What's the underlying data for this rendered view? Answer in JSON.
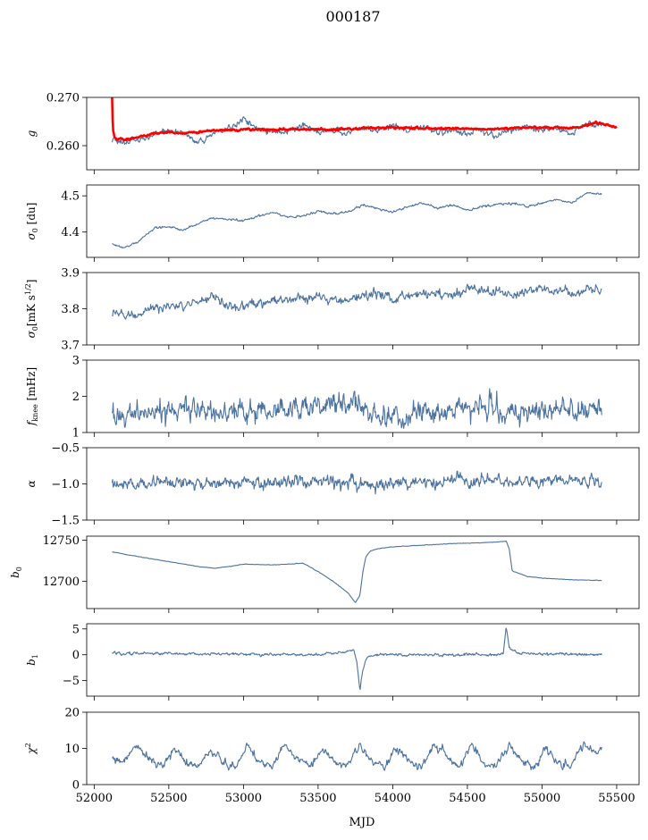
{
  "figure": {
    "title": "000187",
    "xlabel": "MJD",
    "xlim": [
      51950,
      55650
    ],
    "xticks": [
      52000,
      52500,
      53000,
      53500,
      54000,
      54500,
      55000,
      55500
    ],
    "xtick_labels": [
      "52000",
      "52500",
      "53000",
      "53500",
      "54000",
      "54500",
      "55000",
      "55500"
    ]
  },
  "chart_data": [
    {
      "type": "line",
      "ylabel": "g",
      "ylim": [
        0.255,
        0.27
      ],
      "yticks": [
        0.26,
        0.27
      ],
      "ytick_labels": [
        "0.260",
        "0.270"
      ],
      "series": [
        {
          "color": "#4c72a0",
          "x_range": [
            52120,
            55400
          ],
          "x": [
            52120,
            52200,
            52300,
            52400,
            52500,
            52600,
            52700,
            52800,
            52900,
            53000,
            53100,
            53200,
            53300,
            53400,
            53500,
            53600,
            53700,
            53800,
            53900,
            54000,
            54100,
            54200,
            54300,
            54400,
            54500,
            54600,
            54700,
            54800,
            54900,
            55000,
            55100,
            55200,
            55300,
            55400
          ],
          "y": [
            0.2615,
            0.2608,
            0.2612,
            0.2625,
            0.2632,
            0.2626,
            0.2605,
            0.2625,
            0.2635,
            0.2655,
            0.2632,
            0.2628,
            0.263,
            0.2645,
            0.2625,
            0.2632,
            0.2628,
            0.2638,
            0.2635,
            0.2642,
            0.2632,
            0.2638,
            0.2628,
            0.2632,
            0.2625,
            0.2632,
            0.2618,
            0.2635,
            0.264,
            0.2632,
            0.2638,
            0.2622,
            0.2648,
            0.2638
          ],
          "noise": 0.0006
        },
        {
          "color": "#ff0000",
          "x_range": [
            52120,
            55500
          ],
          "x": [
            52120,
            52125,
            52135,
            52150,
            52200,
            52300,
            52400,
            52500,
            52600,
            52700,
            52800,
            52900,
            53000,
            53200,
            53400,
            53600,
            53800,
            54000,
            54200,
            54400,
            54600,
            54800,
            55000,
            55200,
            55300,
            55350,
            55400,
            55450,
            55500
          ],
          "y": [
            0.27,
            0.2635,
            0.262,
            0.2613,
            0.2612,
            0.2618,
            0.2625,
            0.2628,
            0.2626,
            0.2628,
            0.2632,
            0.2632,
            0.2634,
            0.2633,
            0.2635,
            0.2633,
            0.2636,
            0.2638,
            0.2635,
            0.2636,
            0.2634,
            0.2636,
            0.2638,
            0.2636,
            0.2642,
            0.2648,
            0.2645,
            0.2642,
            0.2638
          ],
          "noise": 0.0002,
          "linewidth": 2.6
        }
      ]
    },
    {
      "type": "line",
      "ylabel": "σ0 [du]",
      "ylim": [
        4.33,
        4.53
      ],
      "yticks": [
        4.4,
        4.5
      ],
      "ytick_labels": [
        "4.4",
        "4.5"
      ],
      "series": [
        {
          "color": "#4c72a0",
          "x_range": [
            52120,
            55400
          ],
          "x": [
            52120,
            52200,
            52300,
            52400,
            52500,
            52600,
            52700,
            52800,
            52900,
            53000,
            53100,
            53200,
            53300,
            53400,
            53500,
            53600,
            53700,
            53800,
            53900,
            54000,
            54100,
            54200,
            54300,
            54400,
            54500,
            54600,
            54700,
            54800,
            54900,
            55000,
            55100,
            55200,
            55300,
            55400
          ],
          "y": [
            4.365,
            4.355,
            4.375,
            4.41,
            4.415,
            4.405,
            4.425,
            4.44,
            4.435,
            4.43,
            4.445,
            4.455,
            4.44,
            4.445,
            4.46,
            4.45,
            4.455,
            4.475,
            4.465,
            4.455,
            4.47,
            4.48,
            4.465,
            4.475,
            4.46,
            4.47,
            4.475,
            4.48,
            4.47,
            4.48,
            4.49,
            4.48,
            4.51,
            4.505
          ],
          "noise": 0.003
        }
      ]
    },
    {
      "type": "line",
      "ylabel": "σ0[mK s^1/2]",
      "ylim": [
        3.7,
        3.9
      ],
      "yticks": [
        3.7,
        3.8,
        3.9
      ],
      "ytick_labels": [
        "3.7",
        "3.8",
        "3.9"
      ],
      "series": [
        {
          "color": "#4c72a0",
          "x_range": [
            52120,
            55400
          ],
          "x": [
            52120,
            52200,
            52300,
            52400,
            52500,
            52600,
            52700,
            52800,
            52900,
            53000,
            53100,
            53200,
            53300,
            53400,
            53500,
            53600,
            53700,
            53800,
            53900,
            54000,
            54100,
            54200,
            54300,
            54400,
            54500,
            54600,
            54700,
            54800,
            54900,
            55000,
            55100,
            55200,
            55300,
            55400
          ],
          "y": [
            3.78,
            3.785,
            3.78,
            3.8,
            3.81,
            3.815,
            3.82,
            3.835,
            3.81,
            3.8,
            3.815,
            3.82,
            3.825,
            3.83,
            3.835,
            3.82,
            3.825,
            3.835,
            3.845,
            3.83,
            3.835,
            3.84,
            3.845,
            3.835,
            3.85,
            3.855,
            3.845,
            3.84,
            3.85,
            3.855,
            3.85,
            3.845,
            3.855,
            3.85
          ],
          "noise": 0.012
        }
      ]
    },
    {
      "type": "line",
      "ylabel": "fknee [mHz]",
      "ylim": [
        1,
        3
      ],
      "yticks": [
        1,
        2,
        3
      ],
      "ytick_labels": [
        "1",
        "2",
        "3"
      ],
      "series": [
        {
          "color": "#4c72a0",
          "x_range": [
            52120,
            55400
          ],
          "x": [
            52120,
            52300,
            52500,
            52700,
            52900,
            53100,
            53300,
            53500,
            53700,
            53900,
            54100,
            54300,
            54500,
            54700,
            54900,
            55100,
            55300,
            55400
          ],
          "y": [
            1.6,
            1.55,
            1.65,
            1.6,
            1.55,
            1.65,
            1.6,
            1.7,
            1.8,
            1.55,
            1.45,
            1.55,
            1.6,
            1.6,
            1.55,
            1.7,
            1.65,
            1.6
          ],
          "noise": 0.3
        }
      ]
    },
    {
      "type": "line",
      "ylabel": "α",
      "ylim": [
        -1.5,
        -0.5
      ],
      "yticks": [
        -1.5,
        -1.0,
        -0.5
      ],
      "ytick_labels": [
        "−1.5",
        "−1.0",
        "−0.5"
      ],
      "series": [
        {
          "color": "#4c72a0",
          "x_range": [
            52120,
            55400
          ],
          "x": [
            52120,
            52400,
            52700,
            53000,
            53300,
            53600,
            53900,
            54200,
            54500,
            54800,
            55100,
            55400
          ],
          "y": [
            -1.0,
            -0.98,
            -1.0,
            -0.97,
            -0.98,
            -0.97,
            -1.0,
            -0.98,
            -0.97,
            -0.99,
            -0.96,
            -0.98
          ],
          "noise": 0.08
        }
      ]
    },
    {
      "type": "line",
      "ylabel": "b0",
      "ylim": [
        12667,
        12755
      ],
      "yticks": [
        12700,
        12750
      ],
      "ytick_labels": [
        "12700",
        "12750"
      ],
      "series": [
        {
          "color": "#4c72a0",
          "x_range": [
            52120,
            55400
          ],
          "x": [
            52120,
            52300,
            52500,
            52700,
            52800,
            52900,
            53000,
            53200,
            53400,
            53500,
            53600,
            53700,
            53750,
            53780,
            53800,
            53820,
            53850,
            53900,
            54000,
            54200,
            54400,
            54600,
            54700,
            54760,
            54780,
            54800,
            54900,
            55000,
            55200,
            55400
          ],
          "y": [
            12736,
            12730,
            12724,
            12718,
            12716,
            12718,
            12721,
            12720,
            12722,
            12712,
            12700,
            12686,
            12674,
            12683,
            12712,
            12730,
            12737,
            12740,
            12742,
            12744,
            12746,
            12747,
            12748,
            12749,
            12740,
            12713,
            12706,
            12704,
            12702,
            12701
          ],
          "noise": 0.3
        }
      ]
    },
    {
      "type": "line",
      "ylabel": "b1",
      "ylim": [
        -8,
        6
      ],
      "yticks": [
        -5,
        0,
        5
      ],
      "ytick_labels": [
        "−5",
        "0",
        "5"
      ],
      "series": [
        {
          "color": "#4c72a0",
          "x_range": [
            52120,
            55400
          ],
          "x": [
            52120,
            53500,
            53700,
            53740,
            53760,
            53780,
            53800,
            53820,
            53850,
            53900,
            54700,
            54740,
            54760,
            54780,
            54800,
            54850,
            55400
          ],
          "y": [
            0.3,
            0,
            0.6,
            0.9,
            -1.5,
            -7.0,
            -3.0,
            -1.0,
            -0.3,
            0,
            0,
            0.3,
            5.5,
            1.5,
            0.8,
            0.2,
            0
          ],
          "noise": 0.25
        }
      ]
    },
    {
      "type": "line",
      "ylabel": "χ2",
      "ylim": [
        0,
        20
      ],
      "yticks": [
        0,
        10,
        20
      ],
      "ytick_labels": [
        "0",
        "10",
        "20"
      ],
      "series": [
        {
          "color": "#4c72a0",
          "x_range": [
            52120,
            55400
          ],
          "x": [
            52120,
            52200,
            52280,
            52365,
            52450,
            52530,
            52610,
            52690,
            52780,
            52865,
            52945,
            53030,
            53110,
            53190,
            53280,
            53365,
            53450,
            53530,
            53610,
            53690,
            53780,
            53865,
            53950,
            54030,
            54110,
            54190,
            54280,
            54365,
            54450,
            54530,
            54610,
            54690,
            54780,
            54865,
            54950,
            55030,
            55110,
            55190,
            55280,
            55365,
            55400
          ],
          "y": [
            7,
            6,
            11,
            7,
            5,
            10,
            6,
            5,
            10,
            6,
            5,
            11,
            6,
            5,
            11,
            7,
            5,
            10,
            6,
            5,
            11,
            6,
            5,
            10,
            6,
            5,
            11,
            7,
            5,
            11,
            6,
            5,
            11,
            6,
            5,
            10,
            6,
            5,
            11,
            8,
            10
          ],
          "noise": 1.0
        }
      ]
    }
  ]
}
